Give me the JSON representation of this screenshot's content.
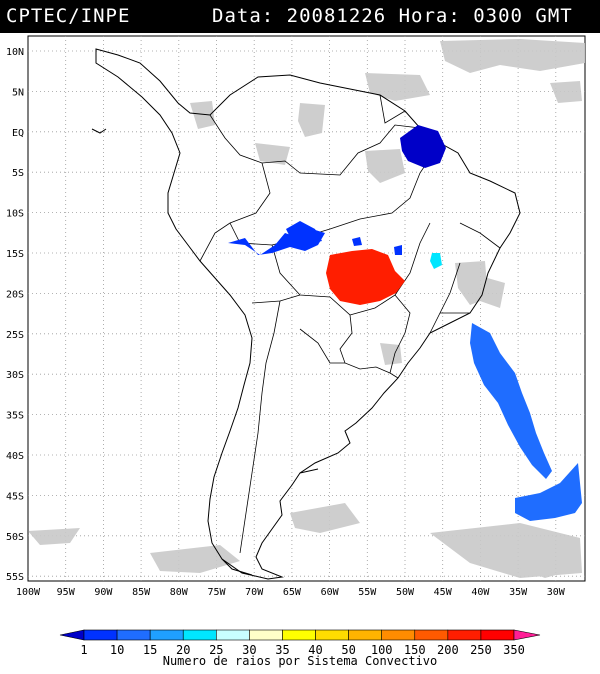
{
  "header": {
    "source": "CPTEC/INPE",
    "datetime": "Data: 20081226 Hora: 0300 GMT"
  },
  "map": {
    "lat_labels": [
      "10N",
      "5N",
      "EQ",
      "5S",
      "10S",
      "15S",
      "20S",
      "25S",
      "30S",
      "35S",
      "40S",
      "45S",
      "50S",
      "55S"
    ],
    "lon_labels": [
      "100W",
      "95W",
      "90W",
      "85W",
      "80W",
      "75W",
      "70W",
      "65W",
      "60W",
      "55W",
      "50W",
      "45W",
      "40W",
      "35W",
      "30W"
    ],
    "lon_range": [
      -100,
      -27
    ],
    "lat_range": [
      -56,
      13
    ]
  },
  "legend": {
    "values": [
      "1",
      "10",
      "15",
      "20",
      "25",
      "30",
      "35",
      "40",
      "50",
      "100",
      "150",
      "200",
      "250",
      "350"
    ],
    "colors": [
      "#0000c8",
      "#0032ff",
      "#1f6dff",
      "#1fa0ff",
      "#00e6ff",
      "#c8ffff",
      "#ffffc8",
      "#ffff00",
      "#ffdc00",
      "#ffb400",
      "#ff8c00",
      "#ff5a00",
      "#ff1e00",
      "#ff0000",
      "#ff1e96"
    ],
    "title": "Numero de raios por Sistema Convectivo"
  }
}
